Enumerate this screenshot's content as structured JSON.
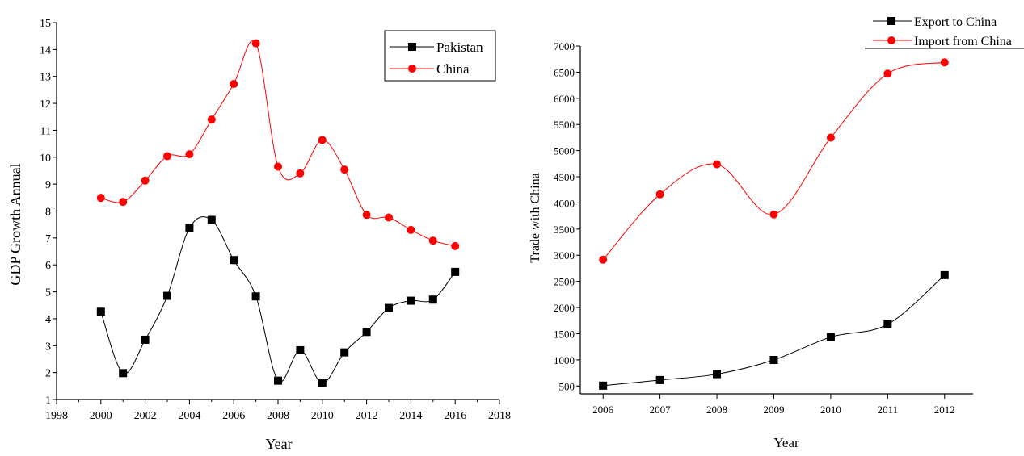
{
  "chart_data": [
    {
      "type": "line",
      "title": "",
      "xlabel": "Year",
      "ylabel": "GDP Growth Annual",
      "xlim": [
        1998,
        2018
      ],
      "ylim": [
        1,
        15
      ],
      "xticks": [
        "1998",
        "2000",
        "2002",
        "2004",
        "2006",
        "2008",
        "2010",
        "2012",
        "2014",
        "2016",
        "2018"
      ],
      "yticks": [
        "1",
        "2",
        "3",
        "4",
        "5",
        "6",
        "7",
        "8",
        "9",
        "10",
        "11",
        "12",
        "13",
        "14",
        "15"
      ],
      "legend_position": "top-right",
      "x": [
        2000,
        2001,
        2002,
        2003,
        2004,
        2005,
        2006,
        2007,
        2008,
        2009,
        2010,
        2011,
        2012,
        2013,
        2014,
        2015,
        2016
      ],
      "series": [
        {
          "name": "Pakistan",
          "color": "#000000",
          "marker": "square",
          "values": [
            4.26,
            1.98,
            3.22,
            4.85,
            7.37,
            7.67,
            6.18,
            4.83,
            1.7,
            2.83,
            1.61,
            2.75,
            3.51,
            4.4,
            4.67,
            4.71,
            5.74
          ]
        },
        {
          "name": "China",
          "color": "#ff0000",
          "marker": "circle",
          "values": [
            8.49,
            8.34,
            9.13,
            10.04,
            10.11,
            11.4,
            12.72,
            14.23,
            9.65,
            9.4,
            10.64,
            9.54,
            7.86,
            7.76,
            7.3,
            6.9,
            6.7
          ]
        }
      ]
    },
    {
      "type": "line",
      "title": "",
      "xlabel": "Year",
      "ylabel": "Trade with China",
      "xlim": [
        2005.6,
        2012.5
      ],
      "ylim": [
        350,
        7000
      ],
      "xticks": [
        "2006",
        "2007",
        "2008",
        "2009",
        "2010",
        "2011",
        "2012"
      ],
      "yticks": [
        "500",
        "1000",
        "1500",
        "2000",
        "2500",
        "3000",
        "3500",
        "4000",
        "4500",
        "5000",
        "5500",
        "6000",
        "6500",
        "7000"
      ],
      "legend_position": "top-right",
      "x": [
        2006,
        2007,
        2008,
        2009,
        2010,
        2011,
        2012
      ],
      "series": [
        {
          "name": "Export to China",
          "color": "#000000",
          "marker": "square",
          "values": [
            507,
            614,
            727,
            998,
            1436,
            1679,
            2620
          ]
        },
        {
          "name": "Import from China",
          "color": "#ff0000",
          "marker": "circle",
          "values": [
            2915,
            4164,
            4738,
            3780,
            5248,
            6471,
            6687
          ]
        }
      ]
    }
  ]
}
